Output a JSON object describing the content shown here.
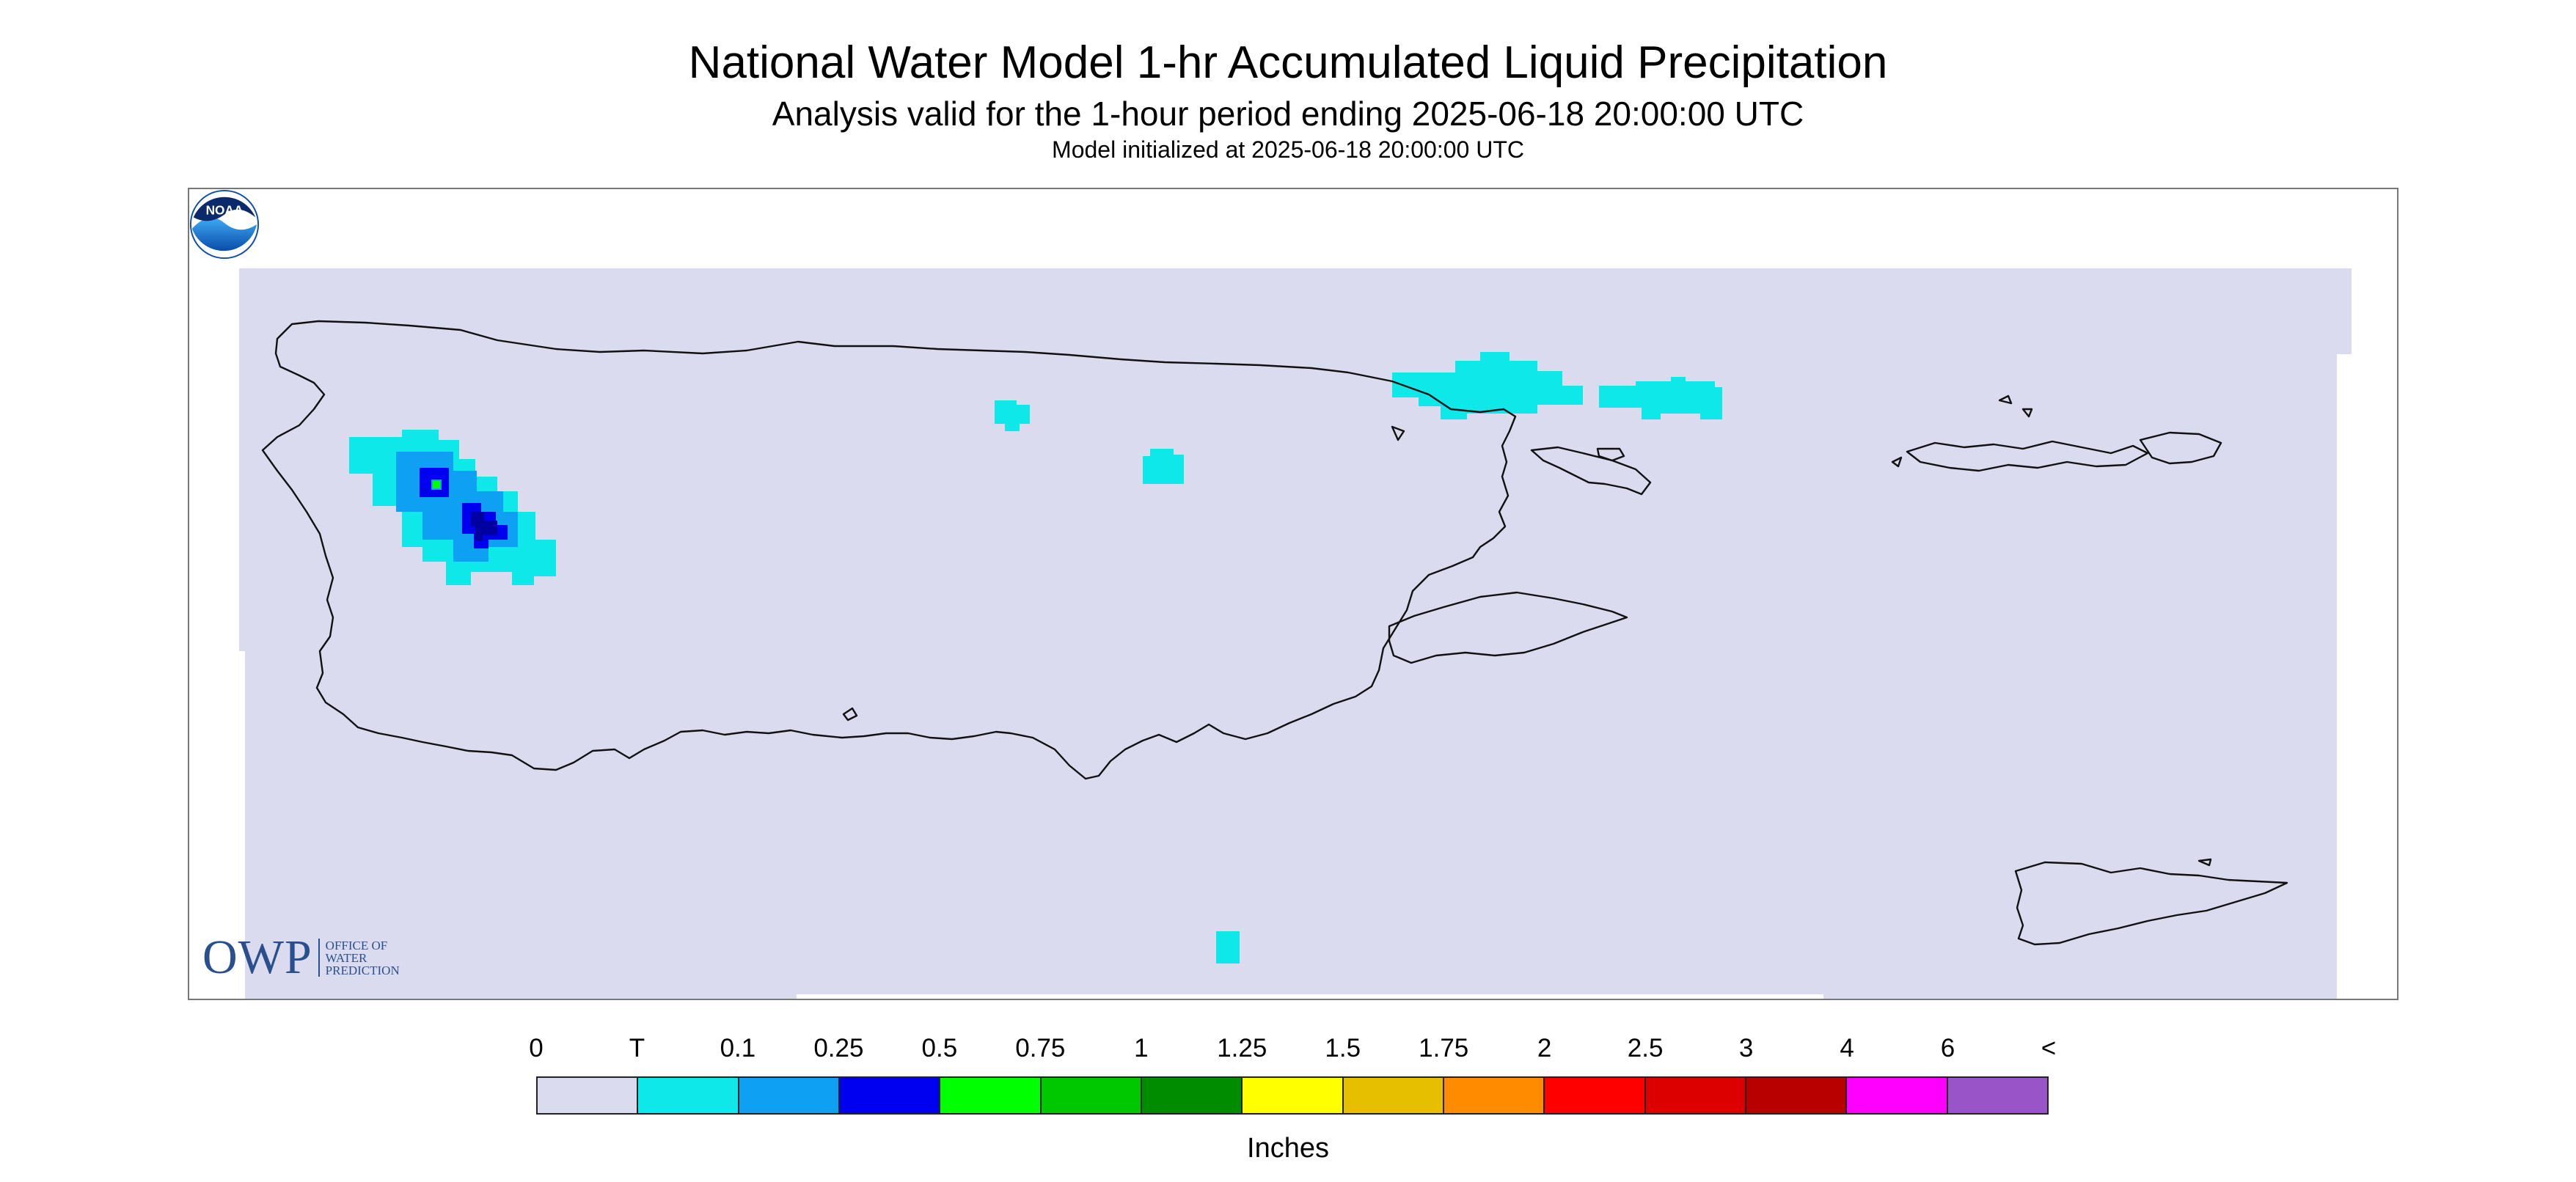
{
  "title": "National Water Model 1-hr Accumulated Liquid Precipitation",
  "subtitle": "Analysis valid for the 1-hour period ending 2025-06-18 20:00:00 UTC",
  "init_line": "Model initialized at 2025-06-18 20:00:00 UTC",
  "logo": {
    "mark": "OWP",
    "text_lines": [
      "OFFICE OF",
      "WATER",
      "PREDICTION"
    ],
    "color": "#2a4f8f"
  },
  "noaa_logo_text": "NOAA",
  "legend": {
    "units_label": "Inches",
    "tick_labels": [
      "0",
      "T",
      "0.1",
      "0.25",
      "0.5",
      "0.75",
      "1",
      "1.25",
      "1.5",
      "1.75",
      "2",
      "2.5",
      "3",
      "4",
      "6",
      "<"
    ],
    "colors": [
      "#dadbee",
      "#0ee8e8",
      "#0ea0f2",
      "#0000f0",
      "#00ff00",
      "#00c800",
      "#008c00",
      "#ffff00",
      "#e6c000",
      "#ff8c00",
      "#ff0000",
      "#dc0000",
      "#b80000",
      "#ff00ff",
      "#9955c8"
    ]
  },
  "map": {
    "background_color": "#dadbee",
    "coastline_color": "#111111",
    "region": "Puerto Rico and U.S. Virgin Islands",
    "precip_areas": [
      "northwest Puerto Rico cluster up to 0.5 in",
      "scattered trace cells",
      "north of Culebra trace cells"
    ]
  }
}
